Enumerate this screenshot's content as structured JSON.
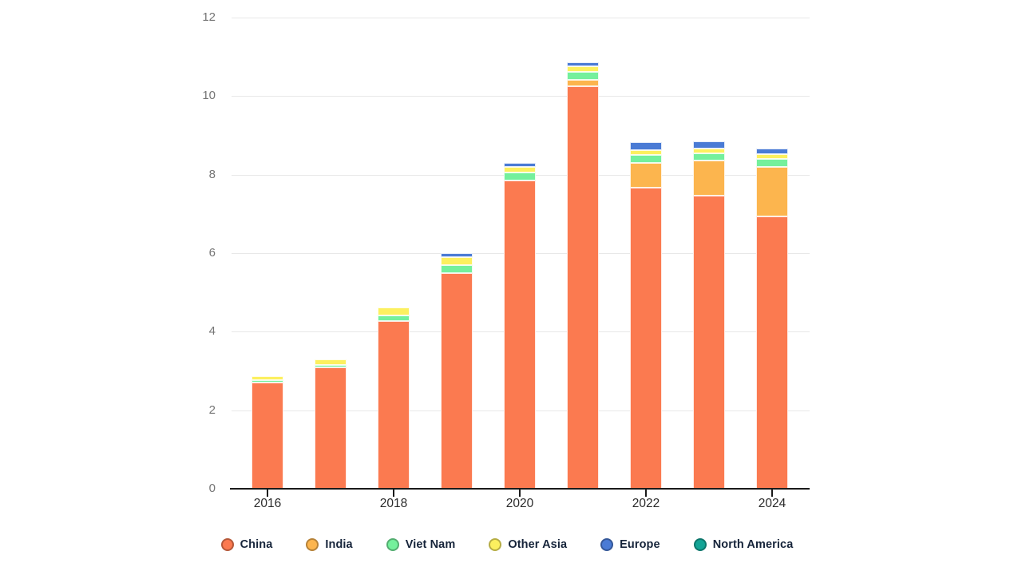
{
  "chart_data": {
    "type": "bar",
    "stacked": true,
    "title": "",
    "xlabel": "",
    "ylabel": "",
    "categories": [
      "2016",
      "2017",
      "2018",
      "2019",
      "2020",
      "2021",
      "2022",
      "2023",
      "2024"
    ],
    "series": [
      {
        "name": "China",
        "color": "#FB7A50",
        "values": [
          2.7,
          3.09,
          4.27,
          5.5,
          7.86,
          10.25,
          7.66,
          7.47,
          6.94
        ]
      },
      {
        "name": "India",
        "color": "#FCB54E",
        "values": [
          0,
          0,
          0,
          0,
          0,
          0.16,
          0.64,
          0.89,
          1.25
        ]
      },
      {
        "name": "Viet Nam",
        "color": "#74F09C",
        "values": [
          0.06,
          0.06,
          0.14,
          0.19,
          0.2,
          0.2,
          0.2,
          0.18,
          0.2
        ]
      },
      {
        "name": "Other Asia",
        "color": "#FCF05F",
        "values": [
          0.11,
          0.15,
          0.2,
          0.2,
          0.14,
          0.14,
          0.13,
          0.13,
          0.13
        ]
      },
      {
        "name": "Europe",
        "color": "#4A7BD5",
        "values": [
          0,
          0,
          0,
          0.11,
          0.1,
          0.12,
          0.19,
          0.18,
          0.14
        ]
      },
      {
        "name": "North America",
        "color": "#13A496",
        "values": [
          0,
          0,
          0,
          0,
          0,
          0,
          0,
          0,
          0
        ]
      }
    ],
    "yticks": [
      0,
      2,
      4,
      6,
      8,
      10,
      12
    ],
    "xticks": [
      "2016",
      "2018",
      "2020",
      "2022",
      "2024"
    ],
    "ylim": [
      0,
      12
    ],
    "grid": "horizontal",
    "legend_position": "bottom"
  }
}
